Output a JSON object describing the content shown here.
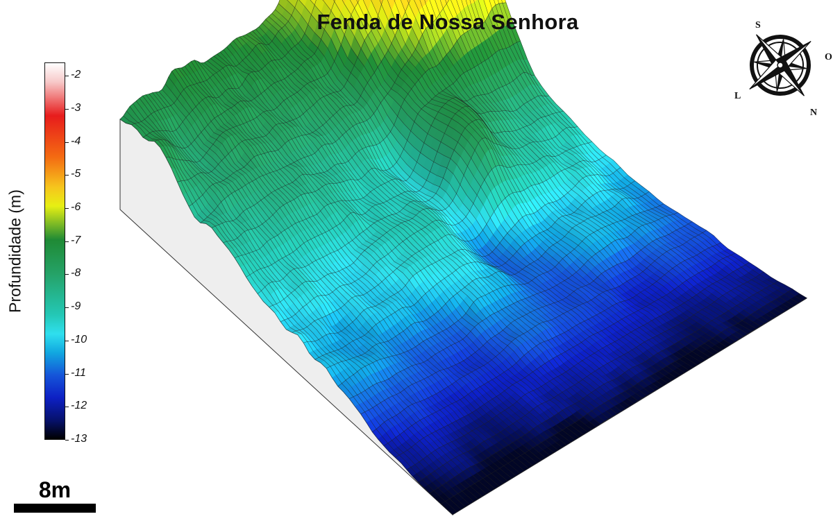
{
  "title": "Fenda de Nossa Senhora",
  "colorbar": {
    "title": "Profundidade (m)",
    "ticks": [
      "-2",
      "-3",
      "-4",
      "-5",
      "-6",
      "-7",
      "-8",
      "-9",
      "-10",
      "-11",
      "-12",
      "-13"
    ],
    "range": [
      -13,
      -1.6
    ]
  },
  "scalebar": {
    "label": "8m"
  },
  "compass": {
    "north": "N",
    "south": "S",
    "east": "L",
    "west": "O"
  },
  "colors": {
    "ramp": [
      "#ffffff",
      "#f7c9c9",
      "#e71c1c",
      "#f46b12",
      "#f6c51d",
      "#e7ef13",
      "#1f8a35",
      "#25a267",
      "#24c8b6",
      "#2fdfee",
      "#11a7e0",
      "#1555d9",
      "#0d20c4",
      "#06116b",
      "#000000"
    ],
    "side": "#eeeeee",
    "grid": "#222222"
  }
}
